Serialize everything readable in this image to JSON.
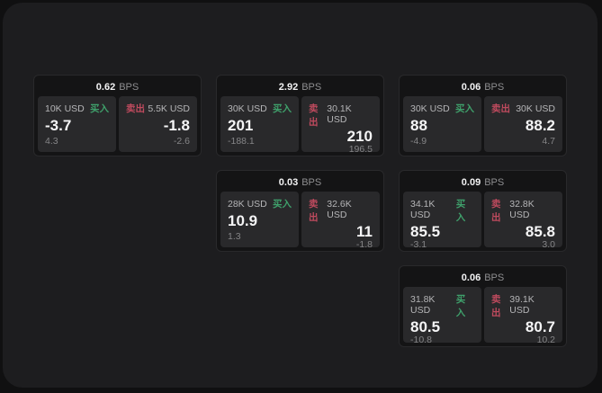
{
  "labels": {
    "bps_unit": "BPS",
    "buy": "买入",
    "sell": "卖出"
  },
  "colors": {
    "buy_green": "#3fa06b",
    "sell_red": "#bf4a5e",
    "window_bg": "#1d1d1f",
    "card_bg": "#141415",
    "panel_bg": "#29292b"
  },
  "cards": [
    {
      "bps": "0.62",
      "buy": {
        "size": "10K USD",
        "price": "-3.7",
        "change": "4.3"
      },
      "sell": {
        "size": "5.5K USD",
        "price": "-1.8",
        "change": "-2.6"
      }
    },
    {
      "bps": "2.92",
      "buy": {
        "size": "30K USD",
        "price": "201",
        "change": "-188.1"
      },
      "sell": {
        "size": "30.1K USD",
        "price": "210",
        "change": "196.5"
      }
    },
    {
      "bps": "0.06",
      "buy": {
        "size": "30K USD",
        "price": "88",
        "change": "-4.9"
      },
      "sell": {
        "size": "30K USD",
        "price": "88.2",
        "change": "4.7"
      }
    },
    {
      "bps": "0.03",
      "buy": {
        "size": "28K USD",
        "price": "10.9",
        "change": "1.3"
      },
      "sell": {
        "size": "32.6K USD",
        "price": "11",
        "change": "-1.8"
      }
    },
    {
      "bps": "0.09",
      "buy": {
        "size": "34.1K USD",
        "price": "85.5",
        "change": "-3.1"
      },
      "sell": {
        "size": "32.8K USD",
        "price": "85.8",
        "change": "3.0"
      }
    },
    {
      "bps": "0.06",
      "buy": {
        "size": "31.8K USD",
        "price": "80.5",
        "change": "-10.8"
      },
      "sell": {
        "size": "39.1K USD",
        "price": "80.7",
        "change": "10.2"
      }
    }
  ]
}
